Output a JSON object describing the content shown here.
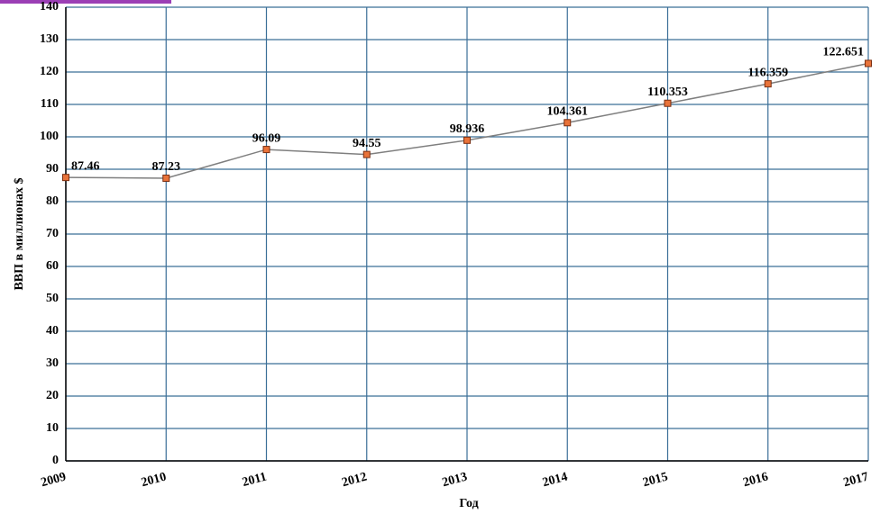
{
  "chart_data": {
    "type": "line",
    "x_label": "Год",
    "y_label": "ВВП в миллионах $",
    "categories": [
      "2009",
      "2010",
      "2011",
      "2012",
      "2013",
      "2014",
      "2015",
      "2016",
      "2017"
    ],
    "values": [
      87.46,
      87.23,
      96.09,
      94.55,
      98.936,
      104.361,
      110.353,
      116.359,
      122.651
    ],
    "line_color": "#7f7f7f",
    "marker_color": "#e8733a",
    "grid_color": "#3b6f98",
    "ylim": [
      0,
      140
    ],
    "yticks": [
      0,
      10,
      20,
      30,
      40,
      50,
      60,
      70,
      80,
      90,
      100,
      110,
      120,
      130,
      140
    ],
    "grid": true
  }
}
